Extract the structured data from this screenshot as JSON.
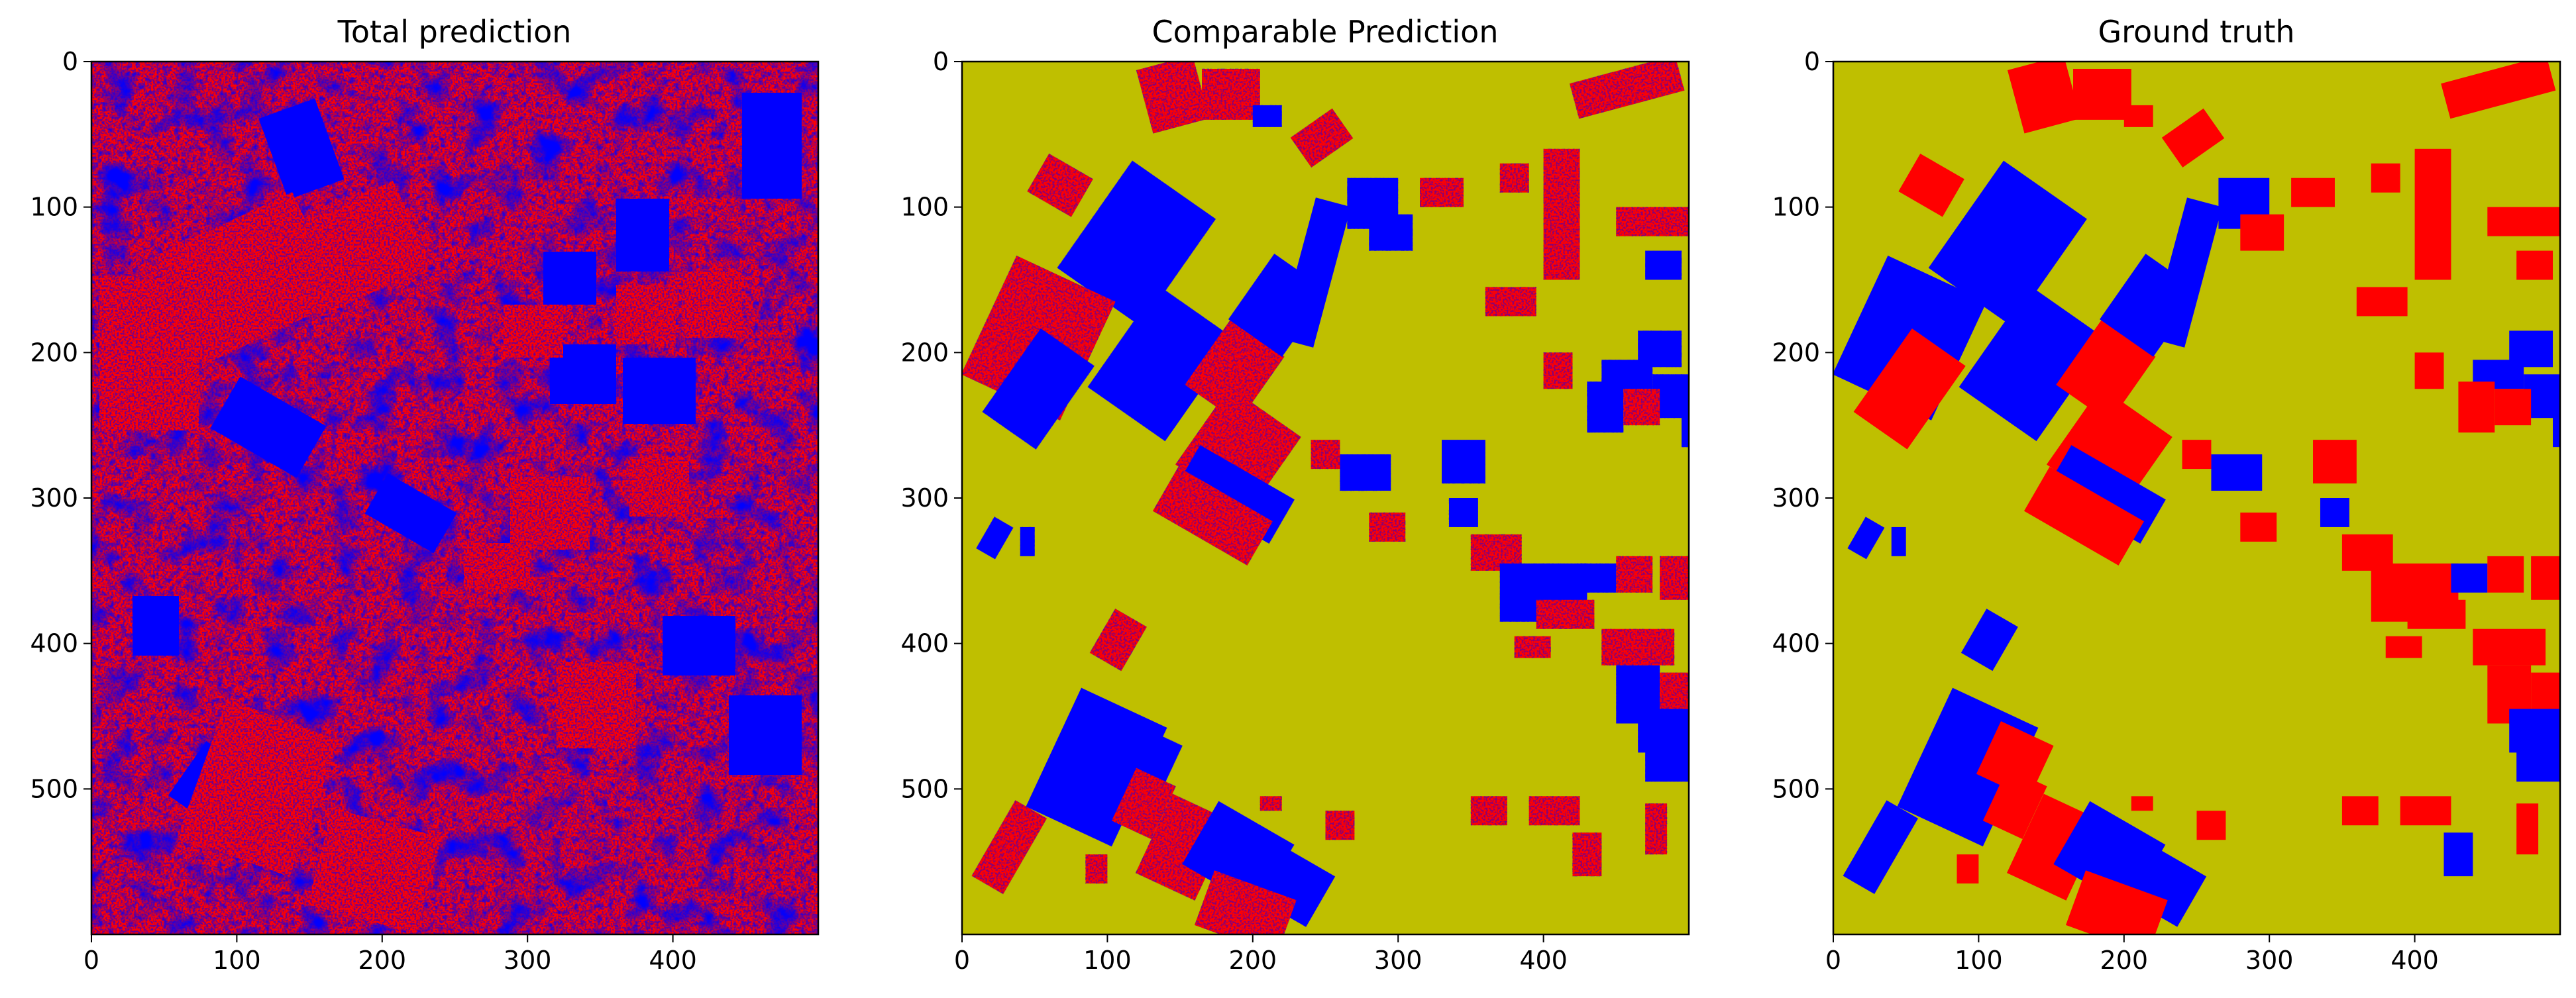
{
  "chart_data": [
    {
      "type": "heatmap",
      "title": "Total prediction",
      "xlabel": "",
      "ylabel": "",
      "xlim": [
        0,
        500
      ],
      "ylim": [
        600,
        0
      ],
      "x_ticks": [
        0,
        100,
        200,
        300,
        400
      ],
      "y_ticks": [
        0,
        100,
        200,
        300,
        400,
        500
      ],
      "grid": false,
      "legend": "none",
      "colors": {
        "class_red": "#ff0000",
        "class_blue": "#0000ff"
      },
      "content": "per-pixel classification map; red and blue classes only, covering the whole image"
    },
    {
      "type": "heatmap",
      "title": "Comparable Prediction",
      "xlabel": "",
      "ylabel": "",
      "xlim": [
        0,
        500
      ],
      "ylim": [
        600,
        0
      ],
      "x_ticks": [
        0,
        100,
        200,
        300,
        400
      ],
      "y_ticks": [
        0,
        100,
        200,
        300,
        400,
        500
      ],
      "grid": false,
      "legend": "none",
      "colors": {
        "background": "#bfbf00",
        "class_red": "#ff0000",
        "class_blue": "#0000ff"
      },
      "content": "prediction restricted to labelled field parcels; unlabelled area shown in olive"
    },
    {
      "type": "heatmap",
      "title": "Ground truth",
      "xlabel": "",
      "ylabel": "",
      "xlim": [
        0,
        500
      ],
      "ylim": [
        600,
        0
      ],
      "x_ticks": [
        0,
        100,
        200,
        300,
        400
      ],
      "y_ticks": [
        0,
        100,
        200,
        300,
        400,
        500
      ],
      "grid": false,
      "legend": "none",
      "colors": {
        "background": "#bfbf00",
        "class_red": "#ff0000",
        "class_blue": "#0000ff"
      },
      "content": "labelled field parcels in red and blue; unlabelled area shown in olive"
    }
  ]
}
